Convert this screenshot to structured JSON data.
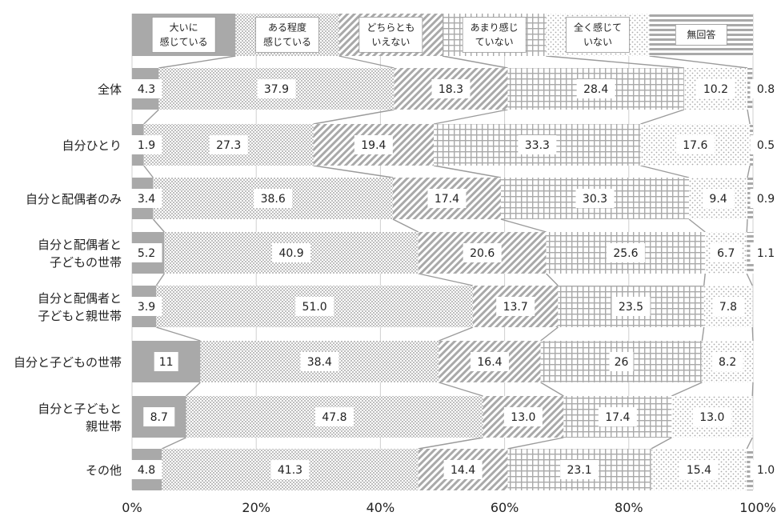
{
  "chart_data": {
    "type": "bar",
    "orientation": "horizontal",
    "stacked": true,
    "title": "",
    "xlabel": "",
    "ylabel": "",
    "xlim": [
      0,
      100
    ],
    "grid": true,
    "legend_position": "top",
    "x_ticks": [
      "0%",
      "20%",
      "40%",
      "60%",
      "80%",
      "100%"
    ],
    "categories": [
      [
        "全体"
      ],
      [
        "自分ひとり"
      ],
      [
        "自分と配偶者のみ"
      ],
      [
        "自分と配偶者と",
        "子どもの世帯"
      ],
      [
        "自分と配偶者と",
        "子どもと親世帯"
      ],
      [
        "自分と子どもの世帯"
      ],
      [
        "自分と子どもと",
        "親世帯"
      ],
      [
        "その他"
      ]
    ],
    "series": [
      {
        "name": [
          "大いに",
          "感じている"
        ],
        "pattern": "solid",
        "values": [
          4.3,
          1.9,
          3.4,
          5.2,
          3.9,
          11,
          8.7,
          4.8
        ],
        "value_labels": [
          "4.3",
          "1.9",
          "3.4",
          "5.2",
          "3.9",
          "11",
          "8.7",
          "4.8"
        ]
      },
      {
        "name": [
          "ある程度",
          "感じている"
        ],
        "pattern": "dots-dense",
        "values": [
          37.9,
          27.3,
          38.6,
          40.9,
          51.0,
          38.4,
          47.8,
          41.3
        ],
        "value_labels": [
          "37.9",
          "27.3",
          "38.6",
          "40.9",
          "51.0",
          "38.4",
          "47.8",
          "41.3"
        ]
      },
      {
        "name": [
          "どちらとも",
          "いえない"
        ],
        "pattern": "diagonal",
        "values": [
          18.3,
          19.4,
          17.4,
          20.6,
          13.7,
          16.4,
          13.0,
          14.4
        ],
        "value_labels": [
          "18.3",
          "19.4",
          "17.4",
          "20.6",
          "13.7",
          "16.4",
          "13.0",
          "14.4"
        ]
      },
      {
        "name": [
          "あまり感じ",
          "ていない"
        ],
        "pattern": "grid",
        "values": [
          28.4,
          33.3,
          30.3,
          25.6,
          23.5,
          26,
          17.4,
          23.1
        ],
        "value_labels": [
          "28.4",
          "33.3",
          "30.3",
          "25.6",
          "23.5",
          "26",
          "17.4",
          "23.1"
        ]
      },
      {
        "name": [
          "全く感じて",
          "いない"
        ],
        "pattern": "dots-sparse",
        "values": [
          10.2,
          17.6,
          9.4,
          6.7,
          7.8,
          8.2,
          13.0,
          15.4
        ],
        "value_labels": [
          "10.2",
          "17.6",
          "9.4",
          "6.7",
          "7.8",
          "8.2",
          "13.0",
          "15.4"
        ]
      },
      {
        "name": [
          "無回答"
        ],
        "pattern": "horizontal-lines",
        "values": [
          0.8,
          0.5,
          0.9,
          1.1,
          0,
          0,
          0,
          1.0
        ],
        "value_labels": [
          "0.8",
          "0.5",
          "0.9",
          "1.1",
          "",
          "",
          "",
          "1.0"
        ]
      }
    ],
    "colors": {
      "bar_fill": "#a9a9a9",
      "pattern_bg": "#ffffff",
      "grid": "#d0d0d0",
      "connector": "#9b9b9b",
      "text": "#222222",
      "label_border": "#999999"
    }
  }
}
